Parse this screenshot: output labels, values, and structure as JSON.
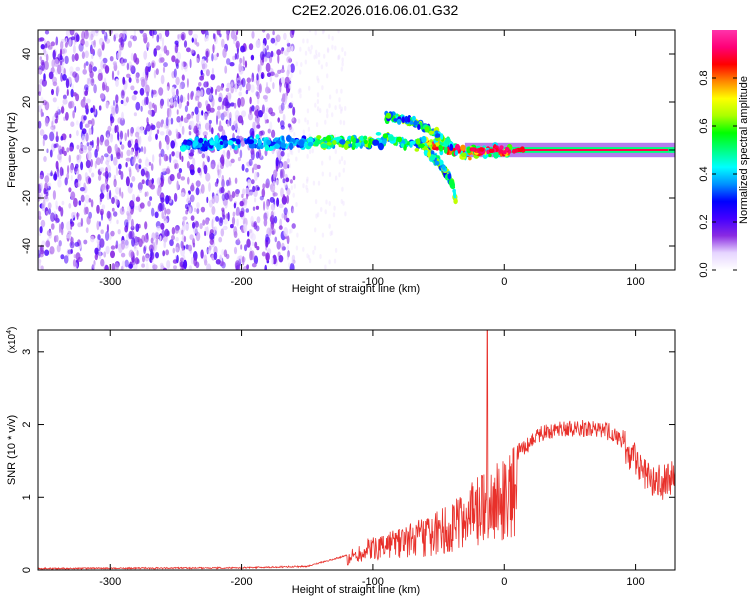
{
  "figure_title": "C2E2.2026.016.06.01.G32",
  "chart_data": [
    {
      "type": "heatmap",
      "xlabel": "Height of straight line (km)",
      "ylabel": "Frequency (Hz)",
      "xlim": [
        -355,
        130
      ],
      "ylim": [
        -50,
        50
      ],
      "x_ticks": [
        -300,
        -200,
        -100,
        0,
        100
      ],
      "y_ticks": [
        -40,
        -20,
        0,
        20,
        40
      ],
      "colorbar": {
        "label": "Normalized spectral amplitude",
        "range": [
          0,
          1
        ],
        "ticks": [
          "0.0",
          "0.2",
          "0.4",
          "0.6",
          "0.8"
        ],
        "tick_values": [
          0,
          0.2,
          0.4,
          0.6,
          0.8
        ],
        "colors": [
          "#ffffff",
          "#e6d5ff",
          "#8a2be2",
          "#4400ff",
          "#0000ff",
          "#0090ff",
          "#00ffff",
          "#00ff7f",
          "#00ff00",
          "#aaff00",
          "#ffff00",
          "#ff8800",
          "#ff0000",
          "#ff0077",
          "#ff33aa"
        ]
      },
      "signal_track": [
        {
          "x": -240,
          "y": 2
        },
        {
          "x": -200,
          "y": 3
        },
        {
          "x": -160,
          "y": 3
        },
        {
          "x": -120,
          "y": 3
        },
        {
          "x": -90,
          "y": 4
        },
        {
          "x": -70,
          "y": 3
        },
        {
          "x": -50,
          "y": 2
        },
        {
          "x": -30,
          "y": -1
        },
        {
          "x": -10,
          "y": 0
        },
        {
          "x": 10,
          "y": 0
        },
        {
          "x": 60,
          "y": 0
        },
        {
          "x": 130,
          "y": 0
        }
      ],
      "branches": [
        {
          "points": [
            {
              "x": -90,
              "y": 14
            },
            {
              "x": -70,
              "y": 12
            },
            {
              "x": -55,
              "y": 8
            },
            {
              "x": -40,
              "y": 2
            }
          ]
        },
        {
          "points": [
            {
              "x": -60,
              "y": 0
            },
            {
              "x": -50,
              "y": -5
            },
            {
              "x": -40,
              "y": -13
            },
            {
              "x": -37,
              "y": -20
            }
          ]
        }
      ]
    },
    {
      "type": "line",
      "xlabel": "Height of straight line (km)",
      "ylabel": "SNR (10 * v/v)",
      "y_scale_label": "(x10",
      "y_scale_exponent": "4",
      "y_scale_suffix": ")",
      "xlim": [
        -355,
        130
      ],
      "ylim": [
        0,
        3.3
      ],
      "x_ticks": [
        -300,
        -200,
        -100,
        0,
        100
      ],
      "y_ticks": [
        0,
        1,
        2,
        3
      ],
      "line_color": "#e8302a",
      "envelope": [
        {
          "x": -355,
          "y": 0.02
        },
        {
          "x": -200,
          "y": 0.03
        },
        {
          "x": -150,
          "y": 0.05
        },
        {
          "x": -120,
          "y": 0.2
        },
        {
          "x": -100,
          "y": 0.4
        },
        {
          "x": -80,
          "y": 0.5
        },
        {
          "x": -60,
          "y": 0.6
        },
        {
          "x": -40,
          "y": 0.8
        },
        {
          "x": -25,
          "y": 1.0
        },
        {
          "x": -15,
          "y": 1.15
        },
        {
          "x": 0,
          "y": 1.3
        },
        {
          "x": 10,
          "y": 1.6
        },
        {
          "x": 25,
          "y": 1.85
        },
        {
          "x": 40,
          "y": 1.95
        },
        {
          "x": 60,
          "y": 1.95
        },
        {
          "x": 80,
          "y": 1.9
        },
        {
          "x": 90,
          "y": 1.75
        },
        {
          "x": 100,
          "y": 1.5
        },
        {
          "x": 110,
          "y": 1.3
        },
        {
          "x": 120,
          "y": 1.2
        },
        {
          "x": 130,
          "y": 1.3
        }
      ],
      "spike": {
        "x": -13,
        "y": 3.3
      }
    }
  ]
}
